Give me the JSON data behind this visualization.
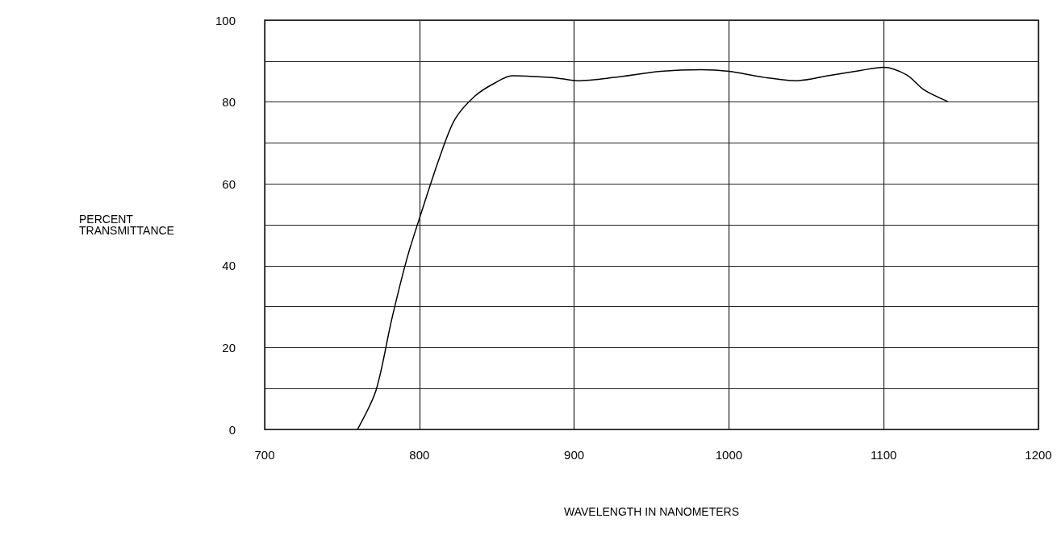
{
  "chart_data": {
    "type": "line",
    "xlabel": "WAVELENGTH IN NANOMETERS",
    "ylabel": "PERCENT\nTRANSMITTANCE",
    "xlim": [
      700,
      1200
    ],
    "xticks": [
      700,
      800,
      900,
      1000,
      1100,
      1200
    ],
    "ylim": [
      0,
      100
    ],
    "yticks": [
      0,
      {
        "value": 10,
        "label": null
      },
      20,
      {
        "value": 30,
        "label": null
      },
      40,
      {
        "value": 50,
        "label": null
      },
      60,
      {
        "value": 70,
        "label": null
      },
      80,
      {
        "value": 90,
        "label": null
      },
      100
    ],
    "grid": true,
    "marker": "none",
    "line_style": "solid",
    "series": [
      {
        "color": "#000000",
        "x": [
          760,
          772,
          782,
          792,
          801,
          813,
          823,
          836,
          849,
          860,
          874,
          890,
          902,
          926,
          956,
          982,
          1000,
          1023,
          1044,
          1064,
          1085,
          1100,
          1115,
          1126,
          1141
        ],
        "values": [
          0,
          9.6,
          26.7,
          41.8,
          52.7,
          66.4,
          75.8,
          81.5,
          84.7,
          86.4,
          86.2,
          85.8,
          85.2,
          86,
          87.5,
          87.9,
          87.5,
          86,
          85.2,
          86.4,
          87.7,
          88.5,
          86.6,
          83,
          80.2
        ]
      }
    ]
  }
}
